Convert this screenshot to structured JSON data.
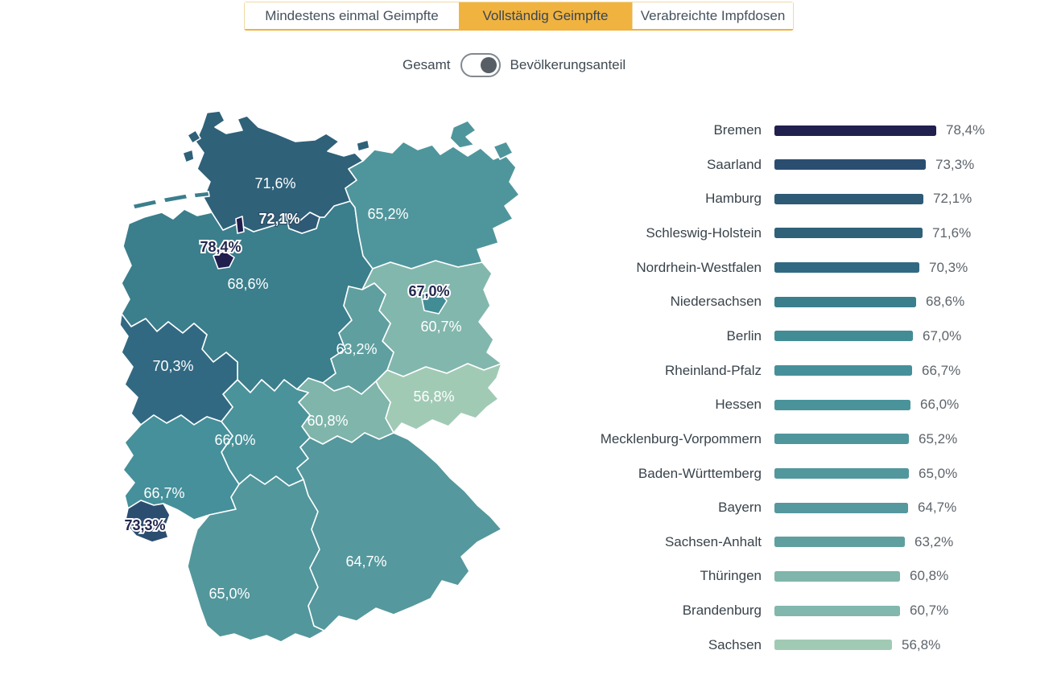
{
  "tabs": [
    {
      "label": "Mindestens einmal Geimpfte",
      "active": false
    },
    {
      "label": "Vollständig Geimpfte",
      "active": true
    },
    {
      "label": "Verabreichte Impfdosen",
      "active": false
    }
  ],
  "toggle": {
    "left_label": "Gesamt",
    "right_label": "Bevölkerungsanteil",
    "selected": "Bevölkerungsanteil",
    "knob_color": "#575e66"
  },
  "theme": {
    "active_tab_bg": "#f1b340",
    "tab_border": "#eedaa4",
    "tab_underline": "#f0b23c",
    "map_border": "#ffffff",
    "dark_label_color": "#23274f"
  },
  "chart_data": {
    "type": "bar+choropleth",
    "unit": "%",
    "decimal_separator": ",",
    "sort": "descending",
    "legend": "none",
    "categories": [
      "Bremen",
      "Saarland",
      "Hamburg",
      "Schleswig-Holstein",
      "Nordrhein-Westfalen",
      "Niedersachsen",
      "Berlin",
      "Rheinland-Pfalz",
      "Hessen",
      "Mecklenburg-Vorpommern",
      "Baden-Württemberg",
      "Bayern",
      "Sachsen-Anhalt",
      "Thüringen",
      "Brandenburg",
      "Sachsen"
    ],
    "values": [
      78.4,
      73.3,
      72.1,
      71.6,
      70.3,
      68.6,
      67.0,
      66.7,
      66.0,
      65.2,
      65.0,
      64.7,
      63.2,
      60.8,
      60.7,
      56.8
    ],
    "states": [
      {
        "key": "hb",
        "name": "Bremen",
        "value": 78.4,
        "value_label": "78,4%",
        "color": "#211f4e",
        "map_label_style": "dark"
      },
      {
        "key": "sl",
        "name": "Saarland",
        "value": 73.3,
        "value_label": "73,3%",
        "color": "#2b4e70",
        "map_label_style": "dark"
      },
      {
        "key": "hh",
        "name": "Hamburg",
        "value": 72.1,
        "value_label": "72,1%",
        "color": "#2e5a76",
        "map_label_style": "shadow"
      },
      {
        "key": "sh",
        "name": "Schleswig-Holstein",
        "value": 71.6,
        "value_label": "71,6%",
        "color": "#2f6179",
        "map_label_style": "light"
      },
      {
        "key": "nw",
        "name": "Nordrhein-Westfalen",
        "value": 70.3,
        "value_label": "70,3%",
        "color": "#326982",
        "map_label_style": "light"
      },
      {
        "key": "ni",
        "name": "Niedersachsen",
        "value": 68.6,
        "value_label": "68,6%",
        "color": "#3b7e8c",
        "map_label_style": "light"
      },
      {
        "key": "be",
        "name": "Berlin",
        "value": 67.0,
        "value_label": "67,0%",
        "color": "#428c95",
        "map_label_style": "dark"
      },
      {
        "key": "rp",
        "name": "Rheinland-Pfalz",
        "value": 66.7,
        "value_label": "66,7%",
        "color": "#45909a",
        "map_label_style": "light"
      },
      {
        "key": "he",
        "name": "Hessen",
        "value": 66.0,
        "value_label": "66,0%",
        "color": "#4a939b",
        "map_label_style": "light"
      },
      {
        "key": "mv",
        "name": "Mecklenburg-Vorpommern",
        "value": 65.2,
        "value_label": "65,2%",
        "color": "#4f969c",
        "map_label_style": "light"
      },
      {
        "key": "bw",
        "name": "Baden-Württemberg",
        "value": 65.0,
        "value_label": "65,0%",
        "color": "#52979c",
        "map_label_style": "light"
      },
      {
        "key": "by",
        "name": "Bayern",
        "value": 64.7,
        "value_label": "64,7%",
        "color": "#55989d",
        "map_label_style": "light"
      },
      {
        "key": "st",
        "name": "Sachsen-Anhalt",
        "value": 63.2,
        "value_label": "63,2%",
        "color": "#5f9fa0",
        "map_label_style": "light"
      },
      {
        "key": "th",
        "name": "Thüringen",
        "value": 60.8,
        "value_label": "60,8%",
        "color": "#7fb5ab",
        "map_label_style": "light"
      },
      {
        "key": "bb",
        "name": "Brandenburg",
        "value": 60.7,
        "value_label": "60,7%",
        "color": "#82b7ad",
        "map_label_style": "light"
      },
      {
        "key": "sn",
        "name": "Sachsen",
        "value": 56.8,
        "value_label": "56,8%",
        "color": "#a1cab5",
        "map_label_style": "light"
      }
    ]
  }
}
